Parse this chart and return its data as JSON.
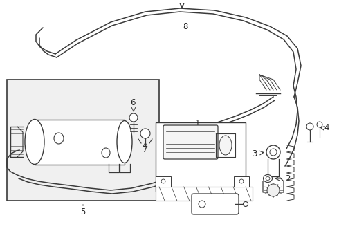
{
  "bg_color": "#ffffff",
  "line_color": "#3a3a3a",
  "label_color": "#222222",
  "box_bg": "#f0f0f0",
  "figsize": [
    4.9,
    3.6
  ],
  "dpi": 100,
  "label_fontsize": 8.5
}
